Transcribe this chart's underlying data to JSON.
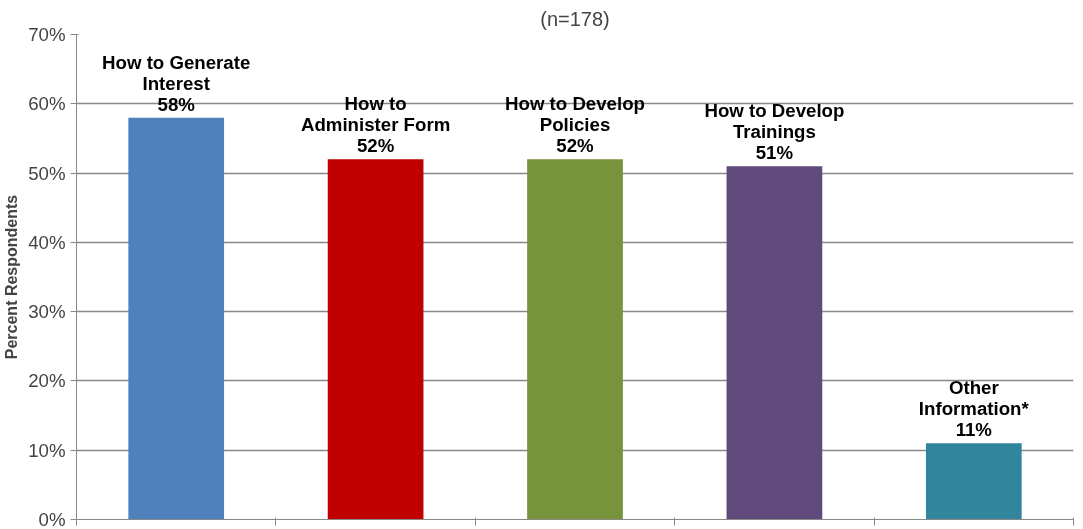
{
  "chart_data": {
    "type": "bar",
    "title": "(n=178)",
    "ylabel": "Percent Respondents",
    "categories": [
      "How to Generate Interest",
      "How to Administer Form",
      "How to Develop Policies",
      "How to Develop Trainings",
      "Other Information*"
    ],
    "values": [
      58,
      52,
      52,
      51,
      11
    ],
    "colors": [
      "#4f81bd",
      "#c00000",
      "#77933c",
      "#604a7b",
      "#31859c"
    ],
    "value_labels": [
      "58%",
      "52%",
      "52%",
      "51%",
      "11%"
    ],
    "ylim": [
      0,
      70
    ],
    "yticks": [
      {
        "value": 0,
        "label": "0%"
      },
      {
        "value": 10,
        "label": "10%"
      },
      {
        "value": 20,
        "label": "20%"
      },
      {
        "value": 30,
        "label": "30%"
      },
      {
        "value": 40,
        "label": "40%"
      },
      {
        "value": 50,
        "label": "50%"
      },
      {
        "value": 60,
        "label": "60%"
      },
      {
        "value": 70,
        "label": "70%"
      }
    ],
    "grid": "y",
    "tick_labels": "y"
  }
}
